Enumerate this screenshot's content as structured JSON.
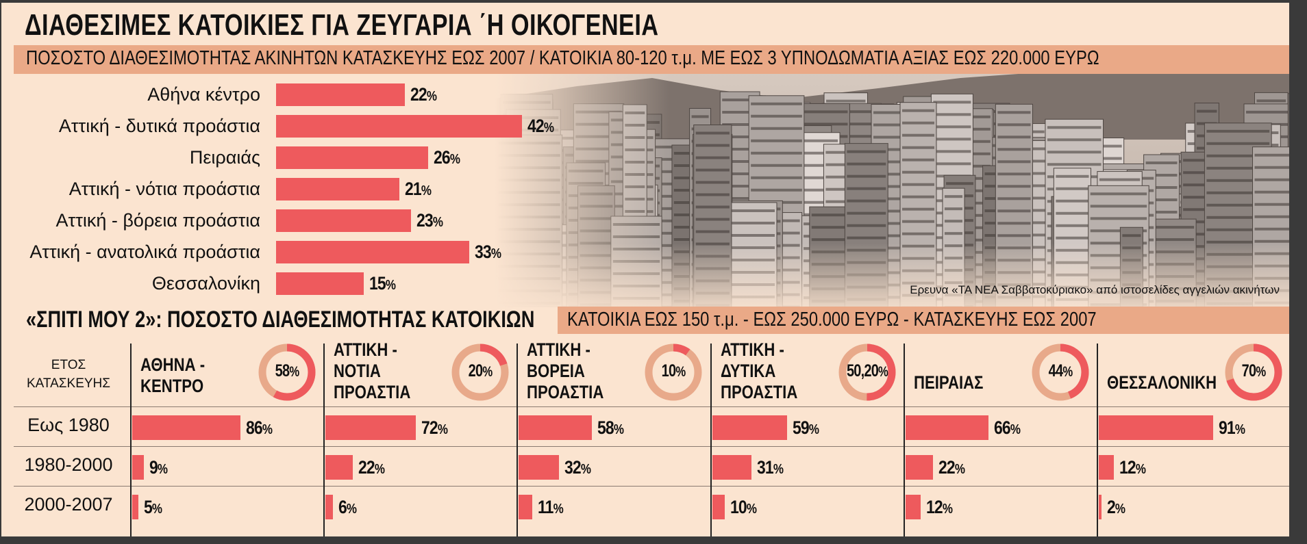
{
  "title": "ΔΙΑΘΕΣΙΜΕΣ ΚΑΤΟΙΚΙΕΣ ΓΙΑ ΖΕΥΓΑΡΙΑ ΄Η ΟΙΚΟΓΕΝΕΙΑ",
  "subtitle": "ΠΟΣΟΣΤΟ ΔΙΑΘΕΣΙΜΟΤΗΤΑΣ ΑΚΙΝΗΤΩΝ ΚΑΤΑΣΚΕΥΗΣ ΕΩΣ 2007 / ΚΑΤΟΙΚΙΑ 80-120 τ.μ. ΜΕ ΕΩΣ 3 ΥΠΝΟΔΩΜΑΤΙΑ ΑΞΙΑΣ ΕΩΣ 220.000 ΕΥΡΩ",
  "source": "Ερευνα «ΤΑ ΝΕΑ Σαββατοκύριακο» από ιστοσελίδες αγγελιών ακινήτων",
  "section2": {
    "title": "«ΣΠΙΤΙ ΜΟΥ 2»: ΠΟΣΟΣΤΟ ΔΙΑΘΕΣΙΜΟΤΗΤΑΣ ΚΑΤΟΙΚΙΩΝ",
    "subtitle": "ΚΑΤΟΙΚΙΑ ΕΩΣ 150 τ.μ. - ΕΩΣ 250.000 ΕΥΡΩ - ΚΑΤΑΣΚΕΥΗΣ ΕΩΣ 2007",
    "year_header": [
      "ΕΤΟΣ",
      "ΚΑΤΑΣΚΕΥΗΣ"
    ]
  },
  "colors": {
    "bar": "#ee5a5d",
    "band": "#eaa987",
    "background": "#fbe4d0",
    "donut_track": "#e8a98a"
  },
  "chart_data": [
    {
      "type": "bar",
      "orientation": "horizontal",
      "categories": [
        "Αθήνα κέντρο",
        "Αττική - δυτικά προάστια",
        "Πειραιάς",
        "Αττική - νότια προάστια",
        "Αττική - βόρεια προάστια",
        "Αττική - ανατολικά προάστια",
        "Θεσσαλονίκη"
      ],
      "values": [
        22,
        42,
        26,
        21,
        23,
        33,
        15
      ],
      "labels": [
        "22%",
        "42%",
        "26%",
        "21%",
        "23%",
        "33%",
        "15%"
      ],
      "unit": "%"
    },
    {
      "type": "bar",
      "orientation": "horizontal",
      "row_categories": [
        "Εως 1980",
        "1980-2000",
        "2000-2007"
      ],
      "groups": [
        {
          "name": [
            "ΑΘΗΝΑ -",
            "ΚΕΝΤΡΟ"
          ],
          "total": 58,
          "total_label": "58%",
          "values": [
            86,
            9,
            5
          ],
          "labels": [
            "86%",
            "9%",
            "5%"
          ]
        },
        {
          "name": [
            "ΑΤΤΙΚΗ -",
            "ΝΟΤΙΑ",
            "ΠΡΟΑΣΤΙΑ"
          ],
          "total": 20,
          "total_label": "20%",
          "values": [
            72,
            22,
            6
          ],
          "labels": [
            "72%",
            "22%",
            "6%"
          ]
        },
        {
          "name": [
            "ΑΤΤΙΚΗ -",
            "ΒΟΡΕΙΑ",
            "ΠΡΟΑΣΤΙΑ"
          ],
          "total": 10,
          "total_label": "10%",
          "values": [
            58,
            32,
            11
          ],
          "labels": [
            "58%",
            "32%",
            "11%"
          ]
        },
        {
          "name": [
            "ΑΤΤΙΚΗ -",
            "ΔΥΤΙΚΑ",
            "ΠΡΟΑΣΤΙΑ"
          ],
          "total": 50.2,
          "total_label": "50,20%",
          "values": [
            59,
            31,
            10
          ],
          "labels": [
            "59%",
            "31%",
            "10%"
          ]
        },
        {
          "name": [
            "ΠΕΙΡΑΙΑΣ"
          ],
          "total": 44,
          "total_label": "44%",
          "values": [
            66,
            22,
            12
          ],
          "labels": [
            "66%",
            "22%",
            "12%"
          ]
        },
        {
          "name": [
            "ΘΕΣΣΑΛΟΝΙΚΗ"
          ],
          "total": 70,
          "total_label": "70%",
          "values": [
            91,
            12,
            2
          ],
          "labels": [
            "91%",
            "12%",
            "2%"
          ]
        }
      ],
      "unit": "%"
    }
  ]
}
